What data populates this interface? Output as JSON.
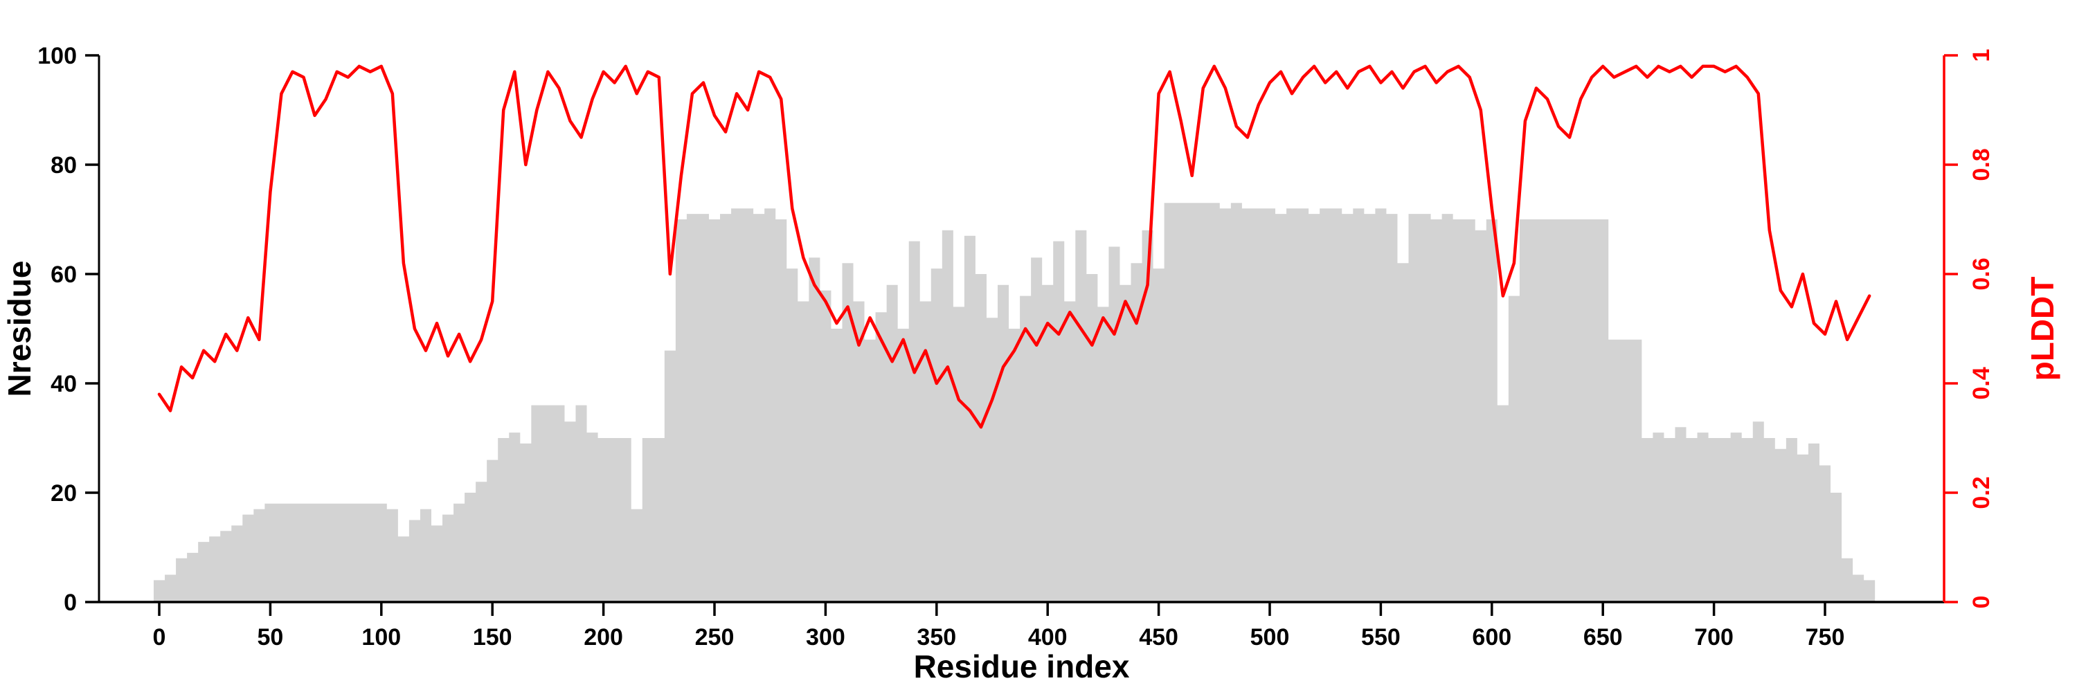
{
  "chart_data": {
    "type": "bar+line",
    "title": "",
    "xlabel": "Residue index",
    "ylabel_left": "Nresidue",
    "ylabel_right": "pLDDT",
    "grid": false,
    "legend": "none",
    "xlim": [
      -27,
      790
    ],
    "ylim_left": [
      0,
      100
    ],
    "ylim_right": [
      0,
      1
    ],
    "x_ticks": [
      0,
      50,
      100,
      150,
      200,
      250,
      300,
      350,
      400,
      450,
      500,
      550,
      600,
      650,
      700,
      750
    ],
    "y_ticks_left": [
      0,
      20,
      40,
      60,
      80,
      100
    ],
    "y_ticks_right": [
      0,
      0.2,
      0.4,
      0.6,
      0.8,
      1
    ],
    "y_tick_labels_right": [
      "0",
      "0.2",
      "0.4",
      "0.6",
      "0.8",
      "1"
    ],
    "colors": {
      "background": "#ffffff",
      "bars": "#d3d3d3",
      "line": "#ff0000",
      "axis": "#000000",
      "right_axis": "#ff0000"
    },
    "x": [
      0,
      5,
      10,
      15,
      20,
      25,
      30,
      35,
      40,
      45,
      50,
      55,
      60,
      65,
      70,
      75,
      80,
      85,
      90,
      95,
      100,
      105,
      110,
      115,
      120,
      125,
      130,
      135,
      140,
      145,
      150,
      155,
      160,
      165,
      170,
      175,
      180,
      185,
      190,
      195,
      200,
      205,
      210,
      215,
      220,
      225,
      230,
      235,
      240,
      245,
      250,
      255,
      260,
      265,
      270,
      275,
      280,
      285,
      290,
      295,
      300,
      305,
      310,
      315,
      320,
      325,
      330,
      335,
      340,
      345,
      350,
      355,
      360,
      365,
      370,
      375,
      380,
      385,
      390,
      395,
      400,
      405,
      410,
      415,
      420,
      425,
      430,
      435,
      440,
      445,
      450,
      455,
      460,
      465,
      470,
      475,
      480,
      485,
      490,
      495,
      500,
      505,
      510,
      515,
      520,
      525,
      530,
      535,
      540,
      545,
      550,
      555,
      560,
      565,
      570,
      575,
      580,
      585,
      590,
      595,
      600,
      605,
      610,
      615,
      620,
      625,
      630,
      635,
      640,
      645,
      650,
      655,
      660,
      665,
      670,
      675,
      680,
      685,
      690,
      695,
      700,
      705,
      710,
      715,
      720,
      725,
      730,
      735,
      740,
      745,
      750,
      755,
      760,
      765,
      770
    ],
    "series": [
      {
        "name": "Nresidue",
        "type": "bar",
        "yaxis": "left",
        "color": "#d3d3d3",
        "values": [
          4,
          5,
          8,
          9,
          11,
          12,
          13,
          14,
          16,
          17,
          18,
          18,
          18,
          18,
          18,
          18,
          18,
          18,
          18,
          18,
          18,
          17,
          12,
          15,
          17,
          14,
          16,
          18,
          20,
          22,
          26,
          30,
          31,
          29,
          36,
          36,
          36,
          33,
          36,
          31,
          30,
          30,
          30,
          17,
          30,
          30,
          46,
          70,
          71,
          71,
          70,
          71,
          72,
          72,
          71,
          72,
          70,
          61,
          55,
          63,
          57,
          50,
          62,
          55,
          48,
          53,
          58,
          50,
          66,
          55,
          61,
          68,
          54,
          67,
          60,
          52,
          58,
          50,
          56,
          63,
          58,
          66,
          55,
          68,
          60,
          54,
          65,
          58,
          62,
          68,
          61,
          73,
          73,
          73,
          73,
          73,
          72,
          73,
          72,
          72,
          72,
          71,
          72,
          72,
          71,
          72,
          72,
          71,
          72,
          71,
          72,
          71,
          62,
          71,
          71,
          70,
          71,
          70,
          70,
          68,
          70,
          36,
          56,
          70,
          70,
          70,
          70,
          70,
          70,
          70,
          70,
          48,
          48,
          48,
          30,
          31,
          30,
          32,
          30,
          31,
          30,
          30,
          31,
          30,
          33,
          30,
          28,
          30,
          27,
          29,
          25,
          20,
          8,
          5,
          4
        ]
      },
      {
        "name": "pLDDT",
        "type": "line",
        "yaxis": "right",
        "color": "#ff0000",
        "values": [
          0.38,
          0.35,
          0.43,
          0.41,
          0.46,
          0.44,
          0.49,
          0.46,
          0.52,
          0.48,
          0.75,
          0.93,
          0.97,
          0.96,
          0.89,
          0.92,
          0.97,
          0.96,
          0.98,
          0.97,
          0.98,
          0.93,
          0.62,
          0.5,
          0.46,
          0.51,
          0.45,
          0.49,
          0.44,
          0.48,
          0.55,
          0.9,
          0.97,
          0.8,
          0.9,
          0.97,
          0.94,
          0.88,
          0.85,
          0.92,
          0.97,
          0.95,
          0.98,
          0.93,
          0.97,
          0.96,
          0.6,
          0.78,
          0.93,
          0.95,
          0.89,
          0.86,
          0.93,
          0.9,
          0.97,
          0.96,
          0.92,
          0.72,
          0.63,
          0.58,
          0.55,
          0.51,
          0.54,
          0.47,
          0.52,
          0.48,
          0.44,
          0.48,
          0.42,
          0.46,
          0.4,
          0.43,
          0.37,
          0.35,
          0.32,
          0.37,
          0.43,
          0.46,
          0.5,
          0.47,
          0.51,
          0.49,
          0.53,
          0.5,
          0.47,
          0.52,
          0.49,
          0.55,
          0.51,
          0.58,
          0.93,
          0.97,
          0.88,
          0.78,
          0.94,
          0.98,
          0.94,
          0.87,
          0.85,
          0.91,
          0.95,
          0.97,
          0.93,
          0.96,
          0.98,
          0.95,
          0.97,
          0.94,
          0.97,
          0.98,
          0.95,
          0.97,
          0.94,
          0.97,
          0.98,
          0.95,
          0.97,
          0.98,
          0.96,
          0.9,
          0.72,
          0.56,
          0.62,
          0.88,
          0.94,
          0.92,
          0.87,
          0.85,
          0.92,
          0.96,
          0.98,
          0.96,
          0.97,
          0.98,
          0.96,
          0.98,
          0.97,
          0.98,
          0.96,
          0.98,
          0.98,
          0.97,
          0.98,
          0.96,
          0.93,
          0.68,
          0.57,
          0.54,
          0.6,
          0.51,
          0.49,
          0.55,
          0.48,
          0.52,
          0.56
        ]
      }
    ]
  }
}
